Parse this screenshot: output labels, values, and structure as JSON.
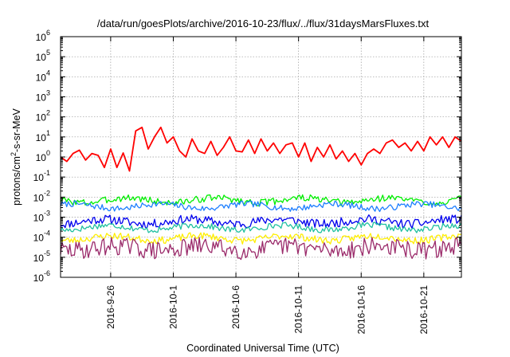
{
  "chart_data": {
    "type": "line",
    "title": "/data/run/goesPlots/archive/2016-10-23/flux/../flux/31daysMarsFluxes.txt",
    "xlabel": "Coordinated Universal Time (UTC)",
    "ylabel_base": "protons/cm",
    "ylabel_sup": "2",
    "ylabel_rest": "-s-sr-MeV",
    "y_scale": "log",
    "ylim": [
      1e-06,
      1000000.0
    ],
    "xlim": [
      "2016-09-22",
      "2016-10-24"
    ],
    "grid": true,
    "y_ticks": [
      {
        "value": 1e-06,
        "base": "10",
        "exp": "-6"
      },
      {
        "value": 1e-05,
        "base": "10",
        "exp": "-5"
      },
      {
        "value": 0.0001,
        "base": "10",
        "exp": "-4"
      },
      {
        "value": 0.001,
        "base": "10",
        "exp": "-3"
      },
      {
        "value": 0.01,
        "base": "10",
        "exp": "-2"
      },
      {
        "value": 0.1,
        "base": "10",
        "exp": "-1"
      },
      {
        "value": 1.0,
        "base": "10",
        "exp": "0"
      },
      {
        "value": 10.0,
        "base": "10",
        "exp": "1"
      },
      {
        "value": 100.0,
        "base": "10",
        "exp": "2"
      },
      {
        "value": 1000.0,
        "base": "10",
        "exp": "3"
      },
      {
        "value": 10000.0,
        "base": "10",
        "exp": "4"
      },
      {
        "value": 100000.0,
        "base": "10",
        "exp": "5"
      },
      {
        "value": 1000000.0,
        "base": "10",
        "exp": "6"
      }
    ],
    "x_ticks": [
      {
        "date": "2016-09-26",
        "label": "2016-9-26"
      },
      {
        "date": "2016-10-01",
        "label": "2016-10-1"
      },
      {
        "date": "2016-10-06",
        "label": "2016-10-6"
      },
      {
        "date": "2016-10-11",
        "label": "2016-10-11"
      },
      {
        "date": "2016-10-16",
        "label": "2016-10-16"
      },
      {
        "date": "2016-10-21",
        "label": "2016-10-21"
      }
    ],
    "series": [
      {
        "color": "#ff0000",
        "points": [
          [
            "2016-09-22",
            1.0
          ],
          [
            "2016-09-22T12:00",
            0.6
          ],
          [
            "2016-09-23",
            1.5
          ],
          [
            "2016-09-23T12:00",
            2.2
          ],
          [
            "2016-09-24",
            0.7
          ],
          [
            "2016-09-24T12:00",
            1.5
          ],
          [
            "2016-09-25",
            1.2
          ],
          [
            "2016-09-25T12:00",
            0.3
          ],
          [
            "2016-09-26",
            2.5
          ],
          [
            "2016-09-26T12:00",
            0.3
          ],
          [
            "2016-09-27",
            1.6
          ],
          [
            "2016-09-27T12:00",
            0.2
          ],
          [
            "2016-09-28",
            20
          ],
          [
            "2016-09-28T12:00",
            30
          ],
          [
            "2016-09-29",
            2.5
          ],
          [
            "2016-09-29T12:00",
            10
          ],
          [
            "2016-09-30",
            30
          ],
          [
            "2016-09-30T12:00",
            5
          ],
          [
            "2016-10-01",
            10
          ],
          [
            "2016-10-01T12:00",
            2
          ],
          [
            "2016-10-02",
            1.0
          ],
          [
            "2016-10-02T12:00",
            8
          ],
          [
            "2016-10-03",
            2
          ],
          [
            "2016-10-03T12:00",
            1.5
          ],
          [
            "2016-10-04",
            6
          ],
          [
            "2016-10-04T12:00",
            1.2
          ],
          [
            "2016-10-05",
            3
          ],
          [
            "2016-10-05T12:00",
            10
          ],
          [
            "2016-10-06",
            2
          ],
          [
            "2016-10-06T12:00",
            1.8
          ],
          [
            "2016-10-07",
            7
          ],
          [
            "2016-10-07T12:00",
            1.5
          ],
          [
            "2016-10-08",
            8
          ],
          [
            "2016-10-08T12:00",
            2.0
          ],
          [
            "2016-10-09",
            5
          ],
          [
            "2016-10-09T12:00",
            1.5
          ],
          [
            "2016-10-10",
            4
          ],
          [
            "2016-10-10T12:00",
            5
          ],
          [
            "2016-10-11",
            1.0
          ],
          [
            "2016-10-11T12:00",
            5
          ],
          [
            "2016-10-12",
            0.6
          ],
          [
            "2016-10-12T12:00",
            3
          ],
          [
            "2016-10-13",
            1.0
          ],
          [
            "2016-10-13T12:00",
            4
          ],
          [
            "2016-10-14",
            0.8
          ],
          [
            "2016-10-14T12:00",
            2
          ],
          [
            "2016-10-15",
            0.6
          ],
          [
            "2016-10-15T12:00",
            1.5
          ],
          [
            "2016-10-16",
            0.4
          ],
          [
            "2016-10-16T12:00",
            1.5
          ],
          [
            "2016-10-17",
            2.5
          ],
          [
            "2016-10-17T12:00",
            1.5
          ],
          [
            "2016-10-18",
            5
          ],
          [
            "2016-10-18T12:00",
            7
          ],
          [
            "2016-10-19",
            3
          ],
          [
            "2016-10-19T12:00",
            5
          ],
          [
            "2016-10-20",
            2
          ],
          [
            "2016-10-20T12:00",
            6
          ],
          [
            "2016-10-21",
            2
          ],
          [
            "2016-10-21T12:00",
            10
          ],
          [
            "2016-10-22",
            4
          ],
          [
            "2016-10-22T12:00",
            10
          ],
          [
            "2016-10-23",
            3
          ],
          [
            "2016-10-23T12:00",
            10
          ],
          [
            "2016-10-24",
            6
          ]
        ]
      },
      {
        "color": "#00ee00",
        "base": 0.007,
        "jitter": 0.35,
        "seed": 3
      },
      {
        "color": "#1e7fff",
        "base": 0.0035,
        "jitter": 0.3,
        "seed": 7
      },
      {
        "color": "#0000ee",
        "base": 0.0006,
        "jitter": 0.45,
        "seed": 11
      },
      {
        "color": "#20c0a0",
        "base": 0.0003,
        "jitter": 0.3,
        "seed": 17
      },
      {
        "color": "#ffee00",
        "base": 9e-05,
        "jitter": 0.35,
        "seed": 23
      },
      {
        "color": "#9a2a6a",
        "base": 2.8e-05,
        "jitter": 0.9,
        "seed": 29
      }
    ]
  }
}
